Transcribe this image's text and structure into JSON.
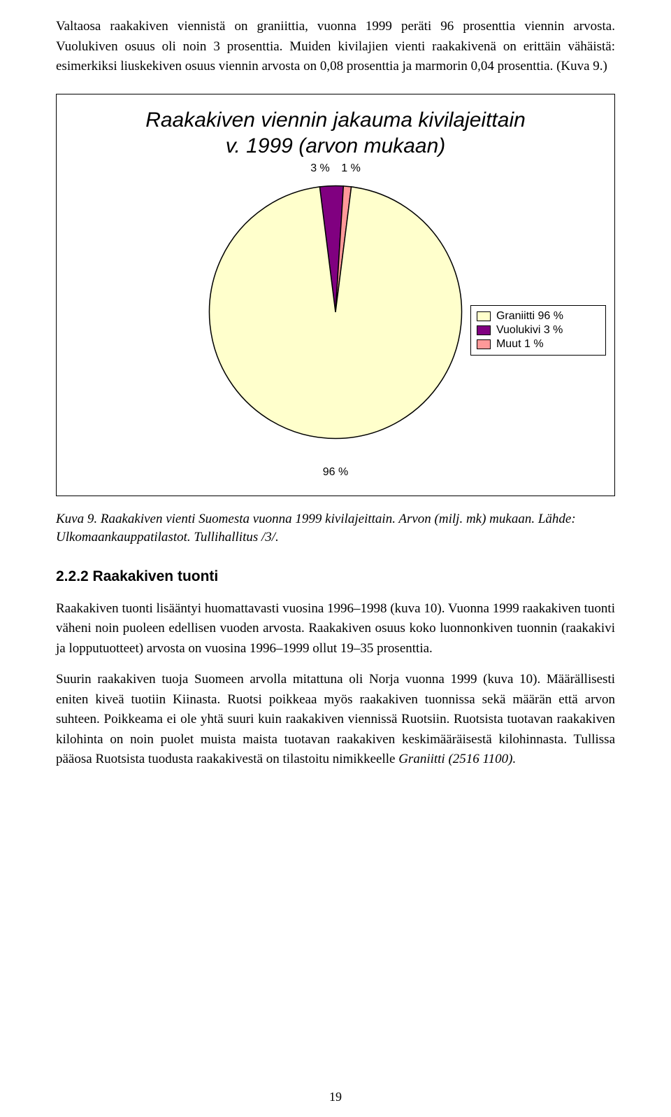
{
  "para1": "Valtaosa raakakiven viennistä on graniittia, vuonna 1999 peräti 96 prosenttia viennin arvosta. Vuolukiven osuus oli noin 3 prosenttia. Muiden kivilajien vienti raakakivenä on erittäin vähäistä: esimerkiksi liuskekiven osuus viennin arvosta on 0,08 prosenttia ja marmorin 0,04 prosenttia. (Kuva 9.)",
  "chart": {
    "type": "pie",
    "title_line1": "Raakakiven viennin jakauma kivilajeittain",
    "title_line2": "v. 1999 (arvon mukaan)",
    "top_label_left": "3 %",
    "top_label_right": "1 %",
    "bottom_label": "96 %",
    "background_color": "#ffffff",
    "border_color": "#000000",
    "title_fontsize": 30,
    "label_fontsize": 16,
    "slices": [
      {
        "label": "Graniitti 96 %",
        "value": 96,
        "color": "#ffffcc"
      },
      {
        "label": "Vuolukivi 3 %",
        "value": 3,
        "color": "#800080"
      },
      {
        "label": "Muut 1 %",
        "value": 1,
        "color": "#ff9999"
      }
    ],
    "pie_border_color": "#000000"
  },
  "caption": "Kuva 9. Raakakiven vienti Suomesta vuonna 1999 kivilajeittain. Arvon (milj. mk) mukaan. Lähde: Ulkomaankauppatilastot. Tullihallitus /3/.",
  "section_heading": "2.2.2  Raakakiven tuonti",
  "para2": "Raakakiven tuonti lisääntyi huomattavasti vuosina 1996–1998 (kuva 10). Vuonna 1999 raakakiven tuonti väheni noin puoleen edellisen vuoden arvosta. Raakakiven osuus koko luonnonkiven tuonnin (raakakivi ja lopputuotteet) arvosta on vuosina 1996–1999 ollut 19–35 prosenttia.",
  "para3": "Suurin raakakiven tuoja Suomeen arvolla mitattuna oli Norja vuonna 1999 (kuva 10). Määrällisesti eniten kiveä tuotiin Kiinasta. Ruotsi poikkeaa myös raakakiven tuonnissa sekä määrän että arvon suhteen. Poikkeama ei ole yhtä suuri kuin raakakiven viennissä Ruotsiin. Ruotsista tuotavan raakakiven kilohinta on noin puolet muista maista tuotavan raakakiven keskimääräisestä kilohinnasta. Tullissa pääosa Ruotsista tuodusta raakakivestä on tilastoitu nimikkeelle ",
  "para3_em": "Graniitti (2516 1100).",
  "page_number": "19"
}
